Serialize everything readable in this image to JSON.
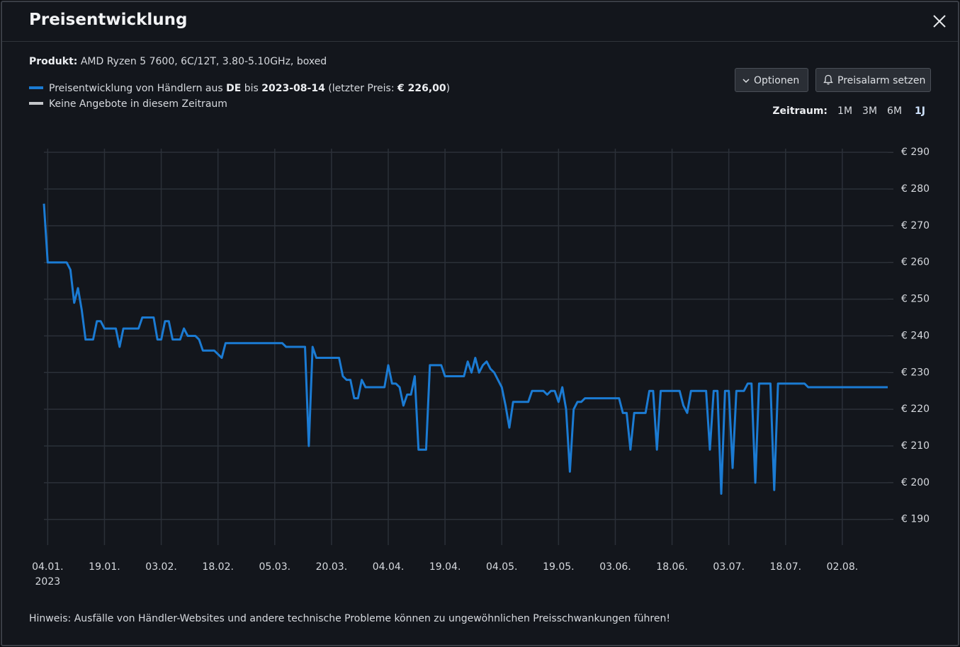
{
  "header": {
    "title": "Preisentwicklung"
  },
  "product": {
    "label": "Produkt:",
    "value": "AMD Ryzen 5 7600, 6C/12T, 3.80-5.10GHz, boxed"
  },
  "legend": {
    "price_parts": [
      "Preisentwicklung von Händlern aus ",
      "DE",
      " bis ",
      "2023-08-14",
      " (letzter Preis: ",
      "€ 226,00",
      ")"
    ],
    "no_offers": "Keine Angebote in diesem Zeitraum"
  },
  "buttons": {
    "options": "Optionen",
    "alarm": "Preisalarm setzen"
  },
  "period": {
    "label": "Zeitraum:",
    "options": [
      "1M",
      "3M",
      "6M",
      "1J"
    ],
    "selected": "1J"
  },
  "footnote": "Hinweis: Ausfälle von Händler-Websites und andere technische Probleme können zu ungewöhnlichen Preisschwankungen führen!",
  "chart_data": {
    "type": "line",
    "x": [
      "2023-01-03",
      "2023-01-04",
      "2023-01-09",
      "2023-01-10",
      "2023-01-11",
      "2023-01-12",
      "2023-01-13",
      "2023-01-14",
      "2023-01-16",
      "2023-01-17",
      "2023-01-18",
      "2023-01-19",
      "2023-01-22",
      "2023-01-23",
      "2023-01-24",
      "2023-01-28",
      "2023-01-29",
      "2023-02-01",
      "2023-02-02",
      "2023-02-03",
      "2023-02-04",
      "2023-02-05",
      "2023-02-06",
      "2023-02-08",
      "2023-02-09",
      "2023-02-10",
      "2023-02-12",
      "2023-02-13",
      "2023-02-14",
      "2023-02-17",
      "2023-02-19",
      "2023-02-20",
      "2023-03-07",
      "2023-03-08",
      "2023-03-13",
      "2023-03-14",
      "2023-03-15",
      "2023-03-16",
      "2023-03-22",
      "2023-03-23",
      "2023-03-24",
      "2023-03-25",
      "2023-03-26",
      "2023-03-27",
      "2023-03-28",
      "2023-03-29",
      "2023-04-03",
      "2023-04-04",
      "2023-04-05",
      "2023-04-06",
      "2023-04-07",
      "2023-04-08",
      "2023-04-09",
      "2023-04-10",
      "2023-04-11",
      "2023-04-12",
      "2023-04-14",
      "2023-04-15",
      "2023-04-18",
      "2023-04-19",
      "2023-04-24",
      "2023-04-25",
      "2023-04-26",
      "2023-04-27",
      "2023-04-28",
      "2023-04-29",
      "2023-04-30",
      "2023-05-01",
      "2023-05-02",
      "2023-05-03",
      "2023-05-04",
      "2023-05-05",
      "2023-05-06",
      "2023-05-07",
      "2023-05-11",
      "2023-05-12",
      "2023-05-15",
      "2023-05-16",
      "2023-05-17",
      "2023-05-18",
      "2023-05-19",
      "2023-05-20",
      "2023-05-21",
      "2023-05-22",
      "2023-05-23",
      "2023-05-24",
      "2023-05-25",
      "2023-05-26",
      "2023-06-04",
      "2023-06-05",
      "2023-06-06",
      "2023-06-07",
      "2023-06-08",
      "2023-06-11",
      "2023-06-12",
      "2023-06-13",
      "2023-06-14",
      "2023-06-15",
      "2023-06-20",
      "2023-06-21",
      "2023-06-22",
      "2023-06-23",
      "2023-06-27",
      "2023-06-28",
      "2023-06-29",
      "2023-06-30",
      "2023-07-01",
      "2023-07-02",
      "2023-07-03",
      "2023-07-04",
      "2023-07-05",
      "2023-07-07",
      "2023-07-08",
      "2023-07-09",
      "2023-07-10",
      "2023-07-11",
      "2023-07-14",
      "2023-07-15",
      "2023-07-16",
      "2023-07-23",
      "2023-07-24",
      "2023-08-14"
    ],
    "series": [
      {
        "color": "#1b7bd3",
        "values": [
          276,
          260,
          260,
          258,
          249,
          253,
          247,
          239,
          239,
          244,
          244,
          242,
          242,
          237,
          242,
          242,
          245,
          245,
          239,
          239,
          244,
          244,
          239,
          239,
          242,
          240,
          240,
          239,
          236,
          236,
          234,
          238,
          238,
          237,
          237,
          210,
          237,
          234,
          234,
          229,
          228,
          228,
          223,
          223,
          228,
          226,
          226,
          232,
          227,
          227,
          226,
          221,
          224,
          224,
          229,
          209,
          209,
          232,
          232,
          229,
          229,
          233,
          230,
          234,
          230,
          232,
          233,
          231,
          230,
          228,
          226,
          221,
          215,
          222,
          222,
          225,
          225,
          224,
          225,
          225,
          222,
          226,
          220,
          203,
          220,
          222,
          222,
          223,
          223,
          219,
          219,
          209,
          219,
          219,
          225,
          225,
          209,
          225,
          225,
          221,
          219,
          225,
          225,
          209,
          225,
          225,
          197,
          225,
          225,
          204,
          225,
          225,
          227,
          227,
          200,
          227,
          227,
          198,
          227,
          227,
          226,
          226
        ]
      }
    ],
    "xlim": [
      "2023-01-03",
      "2023-08-14"
    ],
    "xticks": [
      {
        "value": "2023-01-04",
        "label": "04.01."
      },
      {
        "value": "2023-01-19",
        "label": "19.01."
      },
      {
        "value": "2023-02-03",
        "label": "03.02."
      },
      {
        "value": "2023-02-18",
        "label": "18.02."
      },
      {
        "value": "2023-03-05",
        "label": "05.03."
      },
      {
        "value": "2023-03-20",
        "label": "20.03."
      },
      {
        "value": "2023-04-04",
        "label": "04.04."
      },
      {
        "value": "2023-04-19",
        "label": "19.04."
      },
      {
        "value": "2023-05-04",
        "label": "04.05."
      },
      {
        "value": "2023-05-19",
        "label": "19.05."
      },
      {
        "value": "2023-06-03",
        "label": "03.06."
      },
      {
        "value": "2023-06-18",
        "label": "18.06."
      },
      {
        "value": "2023-07-03",
        "label": "03.07."
      },
      {
        "value": "2023-07-18",
        "label": "18.07."
      },
      {
        "value": "2023-08-02",
        "label": "02.08."
      }
    ],
    "x_year_label": "2023",
    "ylim": [
      183,
      291
    ],
    "yticks": [
      {
        "value": 190,
        "label": "€ 190"
      },
      {
        "value": 200,
        "label": "€ 200"
      },
      {
        "value": 210,
        "label": "€ 210"
      },
      {
        "value": 220,
        "label": "€ 220"
      },
      {
        "value": 230,
        "label": "€ 230"
      },
      {
        "value": 240,
        "label": "€ 240"
      },
      {
        "value": 250,
        "label": "€ 250"
      },
      {
        "value": 260,
        "label": "€ 260"
      },
      {
        "value": 270,
        "label": "€ 270"
      },
      {
        "value": 280,
        "label": "€ 280"
      },
      {
        "value": 290,
        "label": "€ 290"
      }
    ],
    "grid": true
  }
}
